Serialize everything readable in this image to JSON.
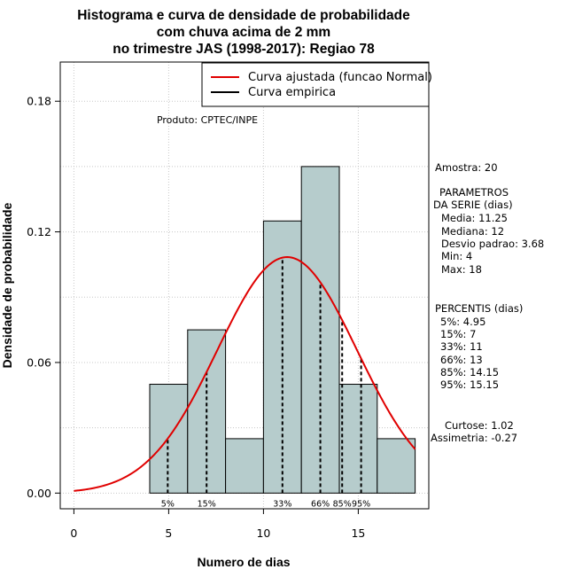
{
  "chart_data": {
    "type": "bar",
    "title": [
      "Histograma e curva de densidade de probabilidade",
      "com chuva acima de 2 mm",
      "no trimestre JAS (1998-2017): Regiao 78"
    ],
    "xlabel": "Numero de dias",
    "ylabel": "Densidade de probabilidade",
    "xlim": [
      -0.72,
      18.72
    ],
    "ylim": [
      -0.0072,
      0.198
    ],
    "x_ticks": [
      0,
      5,
      10,
      15
    ],
    "y_ticks": [
      0.0,
      0.06,
      0.12,
      0.18
    ],
    "y_tick_labels": [
      "0.00",
      "0.06",
      "0.12",
      "0.18"
    ],
    "grid": true,
    "bins": [
      {
        "x0": 4,
        "x1": 6,
        "density": 0.05
      },
      {
        "x0": 6,
        "x1": 8,
        "density": 0.075
      },
      {
        "x0": 8,
        "x1": 10,
        "density": 0.025
      },
      {
        "x0": 10,
        "x1": 12,
        "density": 0.125
      },
      {
        "x0": 12,
        "x1": 14,
        "density": 0.15
      },
      {
        "x0": 14,
        "x1": 16,
        "density": 0.05
      },
      {
        "x0": 16,
        "x1": 18,
        "density": 0.025
      }
    ],
    "bar_color": "#b6cccc",
    "fitted_curve": {
      "name": "Curva ajustada (funcao Normal)",
      "mean": 11.25,
      "sd": 3.68,
      "x_range": [
        0,
        18
      ],
      "color": "#e00000"
    },
    "empirical_curve": {
      "name": "Curva empirica",
      "color": "#000000"
    },
    "legend_position": "top-right",
    "percentiles": [
      {
        "label": "5%",
        "x": 4.95
      },
      {
        "label": "15%",
        "x": 7
      },
      {
        "label": "33%",
        "x": 11
      },
      {
        "label": "66%",
        "x": 13
      },
      {
        "label": "85%",
        "x": 14.15
      },
      {
        "label": "95%",
        "x": 15.15
      }
    ],
    "annotation": "Produto: CPTEC/INPE",
    "stats": {
      "amostra": "Amostra: 20",
      "param_header1": "PARAMETROS",
      "param_header2": "DA SERIE (dias)",
      "media": "Media: 11.25",
      "mediana": "Mediana: 12",
      "desvio": "Desvio padrao: 3.68",
      "min": "Min: 4",
      "max": "Max: 18",
      "perc_header": "PERCENTIS (dias)",
      "p5": "5%: 4.95",
      "p15": "15%: 7",
      "p33": "33%: 11",
      "p66": "66%: 13",
      "p85": "85%: 14.15",
      "p95": "95%: 15.15",
      "curtose": "Curtose: 1.02",
      "assimetria": "Assimetria: -0.27"
    }
  }
}
